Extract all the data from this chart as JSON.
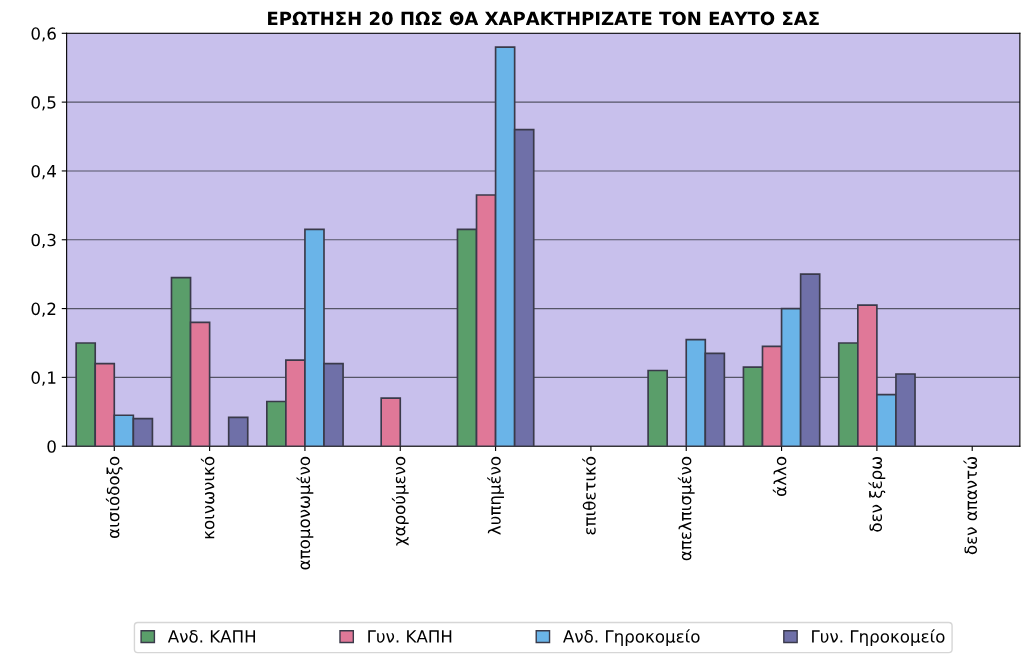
{
  "chart_data": {
    "type": "bar",
    "title": "ΕΡΩΤΗΣΗ 20 ΠΩΣ ΘΑ ΧΑΡΑΚΤΗΡΙΖΑΤΕ ΤΟΝ ΕΑΥΤΟ ΣΑΣ",
    "categories": [
      "αισιόδοξο",
      "κοινωνικό",
      "απομονωμένο",
      "χαρούμενο",
      "λυπημένο",
      "επιθετικό",
      "απελπισμένο",
      "άλλο",
      "δεν ξέρω",
      "δεν απαντώ"
    ],
    "series": [
      {
        "name": "Ανδ. ΚΑΠΗ",
        "color": "#5a9e6a",
        "values": [
          0.15,
          0.245,
          0.065,
          null,
          0.315,
          null,
          0.11,
          0.115,
          0.15,
          null
        ]
      },
      {
        "name": "Γυν. ΚΑΠΗ",
        "color": "#e07898",
        "values": [
          0.12,
          0.18,
          0.125,
          0.07,
          0.365,
          null,
          null,
          0.145,
          0.205,
          null
        ]
      },
      {
        "name": "Ανδ. Γηροκομείο",
        "color": "#6ab4e8",
        "values": [
          0.045,
          null,
          0.315,
          null,
          0.58,
          null,
          0.155,
          0.2,
          0.075,
          null
        ]
      },
      {
        "name": "Γυν. Γηροκομείο",
        "color": "#6f70a8",
        "values": [
          0.04,
          0.042,
          0.12,
          null,
          0.46,
          null,
          0.135,
          0.25,
          0.105,
          null
        ]
      }
    ],
    "ylim": [
      0,
      0.6
    ],
    "yticks": [
      {
        "value": 0,
        "label": "0"
      },
      {
        "value": 0.1,
        "label": "0,1"
      },
      {
        "value": 0.2,
        "label": "0,2"
      },
      {
        "value": 0.3,
        "label": "0,3"
      },
      {
        "value": 0.4,
        "label": "0,4"
      },
      {
        "value": 0.5,
        "label": "0,5"
      },
      {
        "value": 0.6,
        "label": "0,6"
      }
    ],
    "grid": "y",
    "legend": "bottom"
  }
}
